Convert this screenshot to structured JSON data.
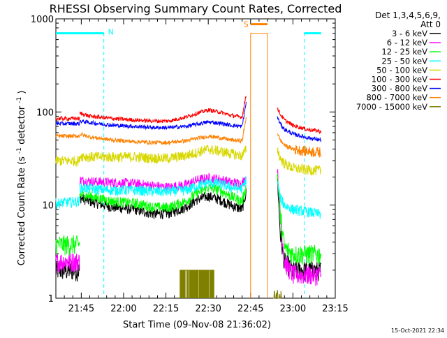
{
  "chart_data": {
    "type": "line",
    "title": "RHESSI Observing Summary Count Rates, Corrected",
    "xlabel": "Start Time (09-Nov-08 21:36:02)",
    "ylabel_text": "Corrected Count Rate (s",
    "ylabel_sup1": "-1",
    "ylabel_mid": " detector",
    "ylabel_sup2": "-1",
    "ylabel_close": ")",
    "x_unit": "minutes since 21:36:02",
    "xlim": [
      0,
      99
    ],
    "ylim": [
      1,
      1000
    ],
    "yscale": "log",
    "xticks": [
      {
        "value": 9.0,
        "label": "21:45"
      },
      {
        "value": 24.0,
        "label": "22:00"
      },
      {
        "value": 39.0,
        "label": "22:15"
      },
      {
        "value": 54.0,
        "label": "22:30"
      },
      {
        "value": 69.0,
        "label": "22:45"
      },
      {
        "value": 84.0,
        "label": "23:00"
      },
      {
        "value": 99.0,
        "label": "23:15"
      }
    ],
    "yticks": [
      {
        "value": 1,
        "label": "1"
      },
      {
        "value": 10,
        "label": "10"
      },
      {
        "value": 100,
        "label": "100"
      },
      {
        "value": 1000,
        "label": "1000"
      }
    ],
    "legend_header": [
      "Det 1,3,4,5,6,9,",
      "Att 0"
    ],
    "legend_position": "right",
    "series": [
      {
        "name": "3 - 6 keV",
        "color": "#000000",
        "segments": [
          {
            "x": [
              0,
              8,
              8.5
            ],
            "y": [
              2.0,
              2.0,
              2.0
            ]
          },
          {
            "x": [
              8.5,
              12,
              20,
              28,
              35,
              40,
              46,
              50,
              54,
              58,
              62,
              66,
              67.5
            ],
            "y": [
              12,
              11,
              9.5,
              9.0,
              8.0,
              8.2,
              9.5,
              11.5,
              12.5,
              11.5,
              10,
              9.0,
              14
            ]
          },
          {
            "x": [
              78.5,
              79.5,
              81,
              84,
              89,
              94
            ],
            "y": [
              20,
              5,
              2.5,
              2.0,
              2.0,
              2.0
            ]
          }
        ]
      },
      {
        "name": "6 - 12 keV",
        "color": "#ff00ff",
        "segments": [
          {
            "x": [
              0,
              8,
              8.5
            ],
            "y": [
              2.5,
              2.5,
              2.5
            ]
          },
          {
            "x": [
              8.5,
              12,
              20,
              28,
              35,
              40,
              46,
              50,
              54,
              58,
              62,
              66,
              67.5
            ],
            "y": [
              18.5,
              18.0,
              17.5,
              17.0,
              16.0,
              15.5,
              16.5,
              18.5,
              19.5,
              19.0,
              17.5,
              17.0,
              20
            ]
          },
          {
            "x": [
              78.5,
              79.5,
              81,
              84,
              89,
              94
            ],
            "y": [
              25,
              8,
              2.5,
              1.8,
              1.8,
              1.8
            ]
          }
        ]
      },
      {
        "name": "12 - 25 keV",
        "color": "#00ff00",
        "segments": [
          {
            "x": [
              0,
              8,
              8.5
            ],
            "y": [
              3.8,
              3.8,
              3.8
            ]
          },
          {
            "x": [
              8.5,
              12,
              20,
              28,
              35,
              40,
              46,
              50,
              54,
              58,
              62,
              66,
              67.5
            ],
            "y": [
              13,
              12.5,
              11,
              10.5,
              9.5,
              9.5,
              11,
              13.5,
              15.5,
              14.5,
              12.5,
              11,
              16
            ]
          },
          {
            "x": [
              78.5,
              79.5,
              81,
              84,
              89,
              94
            ],
            "y": [
              22,
              8,
              3.5,
              3.0,
              3.0,
              3.0
            ]
          }
        ]
      },
      {
        "name": "25 - 50 keV",
        "color": "#00ffff",
        "segments": [
          {
            "x": [
              0,
              8,
              8.5
            ],
            "y": [
              10.5,
              11.0,
              11.0
            ]
          },
          {
            "x": [
              8.5,
              12,
              20,
              28,
              35,
              40,
              46,
              50,
              54,
              58,
              62,
              66,
              67.5
            ],
            "y": [
              15.5,
              15.0,
              14.5,
              14.5,
              14.0,
              14.0,
              14.5,
              16.0,
              17.5,
              17.0,
              15.5,
              15.0,
              19
            ]
          },
          {
            "x": [
              78.5,
              79.5,
              81,
              84,
              89,
              94
            ],
            "y": [
              18,
              12,
              10,
              9.0,
              8.5,
              8.0
            ]
          }
        ]
      },
      {
        "name": "50 - 100 keV",
        "color": "#d8d800",
        "segments": [
          {
            "x": [
              0,
              8,
              8.5
            ],
            "y": [
              30,
              30,
              30
            ]
          },
          {
            "x": [
              8.5,
              12,
              20,
              28,
              35,
              40,
              46,
              50,
              54,
              58,
              62,
              66,
              67.5
            ],
            "y": [
              34,
              33,
              33,
              33,
              32,
              32,
              34,
              37,
              40,
              38,
              36,
              34,
              40
            ]
          },
          {
            "x": [
              78.5,
              79.5,
              81,
              84,
              89,
              94
            ],
            "y": [
              40,
              32,
              28,
              25,
              24,
              23.5
            ]
          }
        ]
      },
      {
        "name": "100 - 300 keV",
        "color": "#ff0000",
        "segments": [
          {
            "x": [
              0,
              8,
              8.5
            ],
            "y": [
              85,
              85,
              85
            ]
          },
          {
            "x": [
              8.5,
              12,
              20,
              28,
              35,
              40,
              46,
              50,
              54,
              58,
              62,
              66,
              67.5
            ],
            "y": [
              97,
              90,
              85,
              82,
              80,
              80,
              88,
              97,
              105,
              100,
              92,
              88,
              160
            ]
          },
          {
            "x": [
              78.5,
              79.5,
              81,
              84,
              89,
              94
            ],
            "y": [
              110,
              95,
              82,
              72,
              65,
              62
            ]
          }
        ]
      },
      {
        "name": "300 - 800 keV",
        "color": "#0000ff",
        "segments": [
          {
            "x": [
              0,
              8,
              8.5
            ],
            "y": [
              75,
              75,
              75
            ]
          },
          {
            "x": [
              8.5,
              12,
              20,
              28,
              35,
              40,
              46,
              50,
              54,
              58,
              62,
              66,
              67.5
            ],
            "y": [
              80,
              77,
              72,
              70,
              68,
              68,
              70,
              74,
              78,
              76,
              72,
              70,
              130
            ]
          },
          {
            "x": [
              78.5,
              79.5,
              81,
              84,
              89,
              94
            ],
            "y": [
              88,
              75,
              65,
              58,
              53,
              50
            ]
          }
        ]
      },
      {
        "name": "800 - 7000 keV",
        "color": "#ff8000",
        "segments": [
          {
            "x": [
              0,
              8,
              8.5
            ],
            "y": [
              55,
              55,
              55
            ]
          },
          {
            "x": [
              8.5,
              12,
              20,
              28,
              35,
              40,
              46,
              50,
              54,
              58,
              62,
              66,
              67.5
            ],
            "y": [
              58,
              54,
              50,
              48,
              47,
              47,
              49,
              52,
              55,
              53,
              50,
              49,
              90
            ]
          },
          {
            "x": [
              69,
              69,
              75,
              75
            ],
            "y": [
              1,
              700,
              700,
              1
            ]
          },
          {
            "x": [
              78.5,
              79.5,
              81,
              84,
              89,
              94
            ],
            "y": [
              60,
              50,
              44,
              40,
              38,
              37
            ]
          }
        ]
      },
      {
        "name": "7000 - 15000 keV",
        "color": "#808000",
        "segments": [
          {
            "x": [
              44,
              44,
              56,
              56
            ],
            "y": [
              1,
              2,
              2,
              1
            ]
          },
          {
            "x": [
              77,
              78,
              80,
              80
            ],
            "y": [
              1,
              1,
              1,
              1
            ]
          }
        ]
      }
    ],
    "saa_flag": {
      "label": "N",
      "color": "#00ffff",
      "segments": [
        {
          "x": [
            0,
            17
          ],
          "y": [
            700,
            700
          ]
        },
        {
          "x": [
            88,
            94
          ],
          "y": [
            700,
            700
          ]
        }
      ]
    },
    "flare_flag": {
      "label": "S",
      "color": "#ff8000",
      "segments": [
        {
          "x": [
            69,
            75
          ],
          "y": [
            700,
            700
          ]
        }
      ]
    },
    "night_boundaries": [
      17,
      75,
      88
    ],
    "data_gaps": [
      [
        8.5,
        8.5
      ],
      [
        68.8,
        78.5
      ]
    ],
    "grid": false
  },
  "footer": {
    "timestamp": "15-Oct-2021 22:34"
  }
}
